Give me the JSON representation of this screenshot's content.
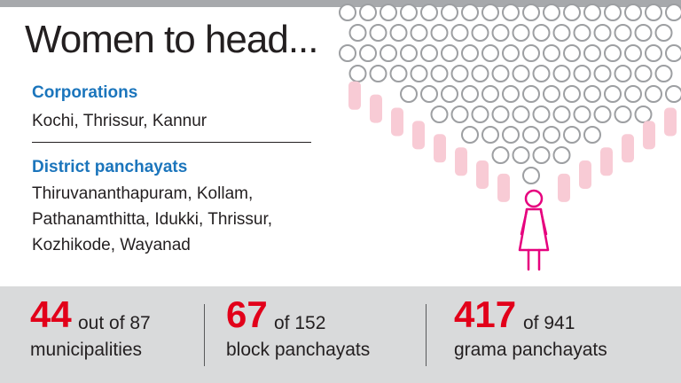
{
  "title": "Women to head...",
  "corporations": {
    "label": "Corporations",
    "text": "Kochi, Thrissur, Kannur"
  },
  "district_panchayats": {
    "label": "District panchayats",
    "lines": [
      "Thiruvananthapuram, Kollam,",
      "Pathanamthitta, Idukki, Thrissur,",
      "Kozhikode, Wayanad"
    ]
  },
  "stats": [
    {
      "number": "44",
      "suffix": "out of 87",
      "desc": "municipalities"
    },
    {
      "number": "67",
      "suffix": "of 152",
      "desc": "block panchayats"
    },
    {
      "number": "417",
      "suffix": "of 941",
      "desc": "grama panchayats"
    }
  ],
  "colors": {
    "accent_blue": "#1b75bc",
    "accent_red": "#e2001a",
    "figure_pink": "#e6007e",
    "crowd_pink": "#f8cbd5",
    "panel_gray": "#d9dadb"
  },
  "icons": [
    "crowd-illustration",
    "woman-figure-icon"
  ]
}
